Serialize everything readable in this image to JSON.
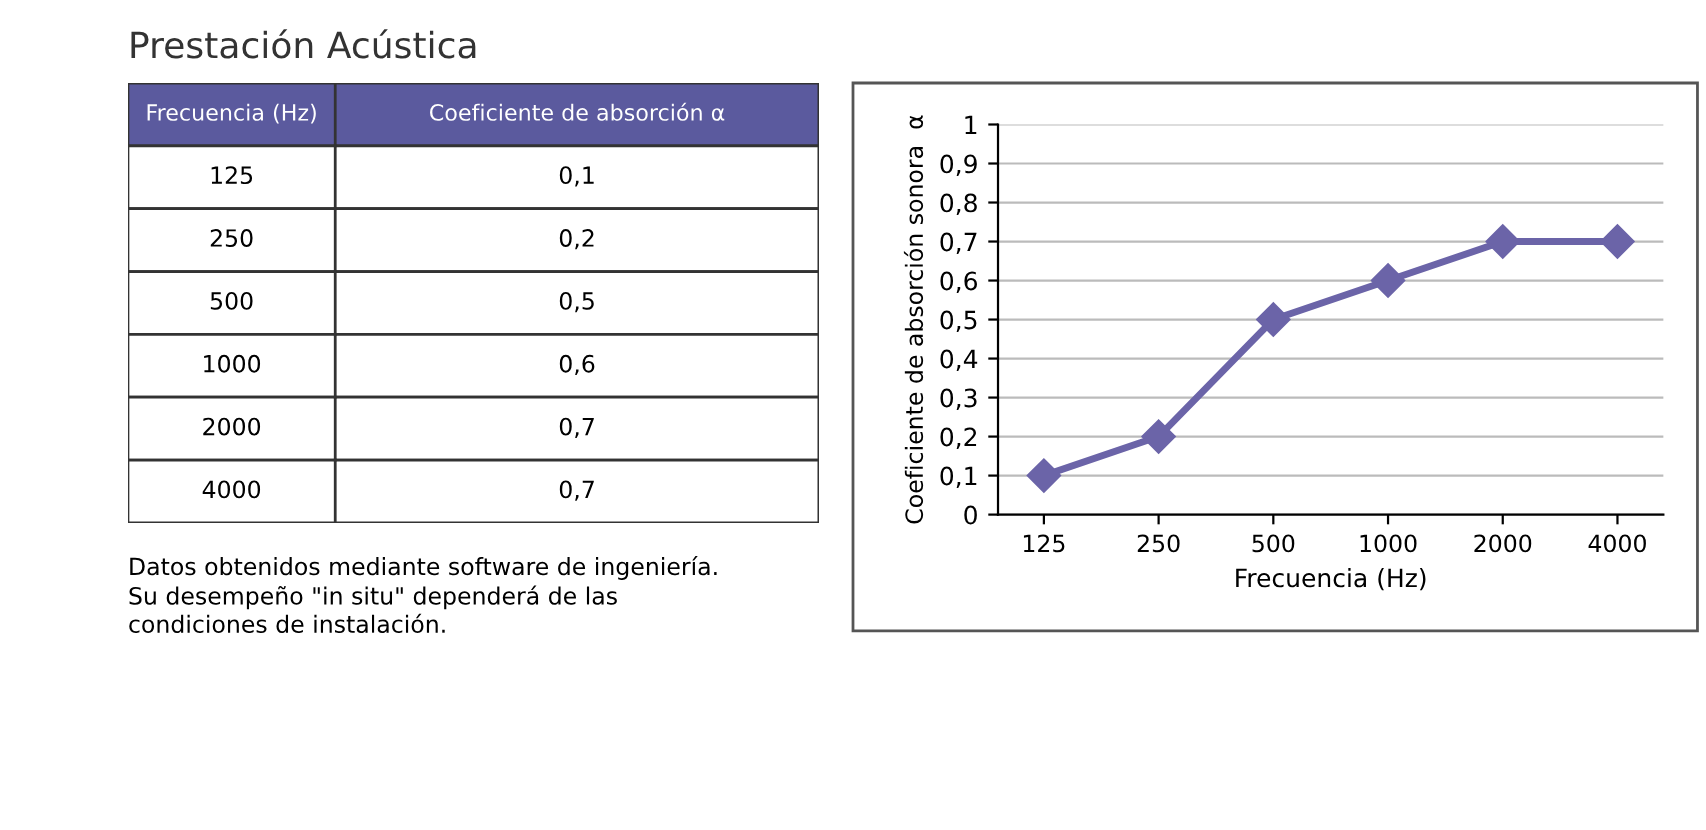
{
  "chart_data": [
    {
      "type": "other",
      "title": "Prestación Acústica",
      "annotations": [
        "Frecuencia (Hz)",
        "Coeficiente de absorción α",
        "125",
        "0,1",
        "250",
        "0,2",
        "500",
        "0,5",
        "1000",
        "0,6",
        "2000",
        "0,7",
        "4000",
        "0,7",
        "Datos obtenidos mediante software de ingeniería.\nSu desempeño \"in situ\" dependerá de las\ncondiciones de instalación."
      ]
    },
    {
      "type": "line",
      "categories": [
        "125",
        "250",
        "500",
        "1000",
        "2000",
        "4000"
      ],
      "values": [
        0.1,
        0.2,
        0.5,
        0.6,
        0.7,
        0.7
      ],
      "color": "#6b64a8",
      "marker": "diamond",
      "grid": "y",
      "xlabel": "Frecuencia (Hz)",
      "ylabel": "Coeficiente de absorción sonora  α",
      "ylim": [
        0,
        1
      ],
      "yticks": [
        0,
        {
          "value": 0.1,
          "label": "0,1"
        },
        {
          "value": 0.2,
          "label": "0,2"
        },
        {
          "value": 0.3,
          "label": "0,3"
        },
        {
          "value": 0.4,
          "label": "0,4"
        },
        {
          "value": 0.5,
          "label": "0,5"
        },
        {
          "value": 0.6,
          "label": "0,6"
        },
        {
          "value": 0.7,
          "label": "0,7"
        },
        {
          "value": 0.8,
          "label": "0,8"
        },
        {
          "value": 0.9,
          "label": "0,9"
        },
        1
      ]
    }
  ]
}
